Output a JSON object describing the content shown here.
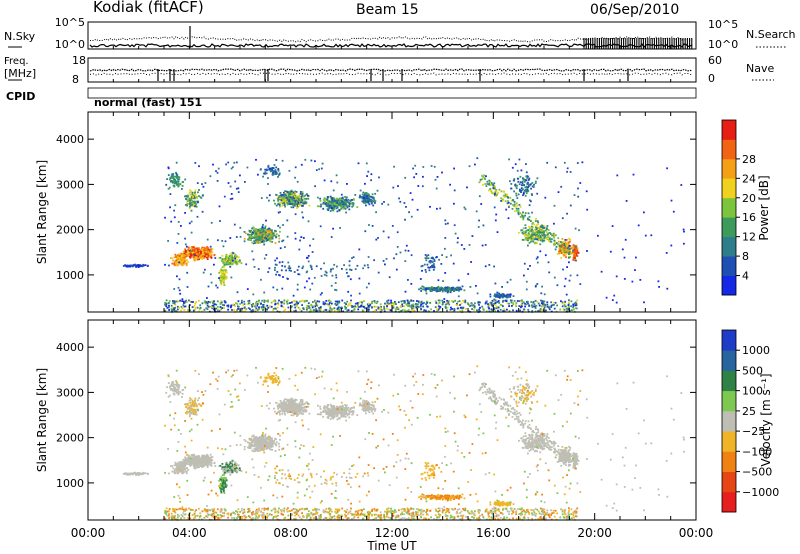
{
  "header": {
    "station": "Kodiak (fitACF)",
    "beam": "Beam 15",
    "date": "06/Sep/2010"
  },
  "sky_panel": {
    "left_label": "N.Sky",
    "right_label": "N.Search",
    "left_ticks": [
      "10^5",
      "10^0"
    ],
    "right_ticks": [
      "10^5",
      "10^0"
    ]
  },
  "freq_panel": {
    "left_label_line1": "Freq.",
    "left_label_line2": "[MHz]",
    "right_label": "Nave",
    "left_ticks": [
      "18",
      "8"
    ],
    "right_ticks": [
      "60",
      "0"
    ]
  },
  "cpid": {
    "label": "CPID",
    "value": "normal (fast) 151"
  },
  "colors": {
    "power_scale": [
      "#1428e6",
      "#1e50b4",
      "#2e7d8a",
      "#3c9a5a",
      "#7cc43c",
      "#f0d21e",
      "#f5a014",
      "#f06414",
      "#e61e14"
    ],
    "velocity_scale": [
      "#1e3cc8",
      "#2864a0",
      "#2e8246",
      "#7cc850",
      "#bebeb4",
      "#f0b428",
      "#f08214",
      "#e64614",
      "#e61e1e"
    ],
    "ground_scatter": "#b4b4aa"
  },
  "chart_data": [
    {
      "type": "heatmap",
      "name": "power",
      "ylabel": "Slant Range [km]",
      "xlabel": "Time UT",
      "y_ticks": [
        1000,
        2000,
        3000,
        4000
      ],
      "ylim": [
        180,
        4600
      ],
      "x_ticks": [
        "00:00",
        "04:00",
        "08:00",
        "12:00",
        "16:00",
        "20:00",
        "00:00"
      ],
      "xlim_hours": [
        0,
        24
      ],
      "colorbar_label": "Power [dB]",
      "colorbar_ticks": [
        "4",
        "8",
        "12",
        "16",
        "20",
        "24",
        "28"
      ]
    },
    {
      "type": "heatmap",
      "name": "velocity",
      "ylabel": "Slant Range [km]",
      "xlabel": "Time UT",
      "y_ticks": [
        1000,
        2000,
        3000,
        4000
      ],
      "ylim": [
        180,
        4600
      ],
      "x_ticks": [
        "00:00",
        "04:00",
        "08:00",
        "12:00",
        "16:00",
        "20:00",
        "00:00"
      ],
      "xlim_hours": [
        0,
        24
      ],
      "colorbar_label": "Velocity [m s⁻¹]",
      "colorbar_ticks": [
        "1000",
        "500",
        "100",
        "25",
        "−25",
        "−100",
        "−500",
        "−1000"
      ]
    }
  ]
}
